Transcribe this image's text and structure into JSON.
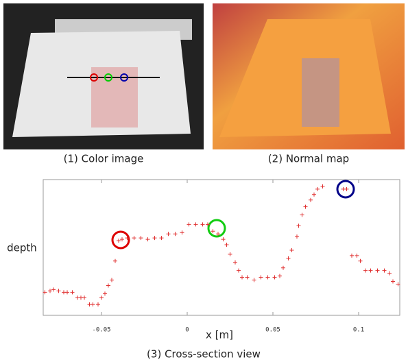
{
  "figures": {
    "color_image": {
      "caption": "(1) Color image"
    },
    "normal_map": {
      "caption": "(2) Normal map"
    }
  },
  "chart_data": {
    "type": "scatter",
    "caption": "(3) Cross-section view",
    "xlabel": "x [m]",
    "ylabel": "depth",
    "color": "#e03030",
    "marker": "+",
    "xlim": [
      -0.084,
      0.124
    ],
    "ylim": [
      0,
      1
    ],
    "xticks": [
      -0.05,
      0,
      0.05,
      0.1
    ],
    "x": [
      -0.083,
      -0.08,
      -0.078,
      -0.075,
      -0.072,
      -0.07,
      -0.067,
      -0.064,
      -0.062,
      -0.06,
      -0.057,
      -0.055,
      -0.052,
      -0.05,
      -0.048,
      -0.046,
      -0.044,
      -0.042,
      -0.04,
      -0.038,
      -0.035,
      -0.031,
      -0.027,
      -0.023,
      -0.019,
      -0.015,
      -0.011,
      -0.007,
      -0.003,
      0.001,
      0.005,
      0.009,
      0.012,
      0.015,
      0.018,
      0.021,
      0.023,
      0.025,
      0.028,
      0.03,
      0.032,
      0.035,
      0.039,
      0.043,
      0.047,
      0.051,
      0.054,
      0.056,
      0.059,
      0.061,
      0.064,
      0.065,
      0.067,
      0.069,
      0.072,
      0.074,
      0.076,
      0.079,
      0.091,
      0.093,
      0.096,
      0.099,
      0.101,
      0.104,
      0.107,
      0.111,
      0.115,
      0.118,
      0.12,
      0.123
    ],
    "y": [
      0.17,
      0.18,
      0.19,
      0.18,
      0.17,
      0.17,
      0.17,
      0.13,
      0.13,
      0.13,
      0.08,
      0.08,
      0.08,
      0.13,
      0.16,
      0.22,
      0.26,
      0.4,
      0.55,
      0.56,
      0.57,
      0.57,
      0.57,
      0.56,
      0.57,
      0.57,
      0.6,
      0.6,
      0.61,
      0.67,
      0.67,
      0.67,
      0.67,
      0.62,
      0.6,
      0.56,
      0.52,
      0.45,
      0.39,
      0.33,
      0.28,
      0.28,
      0.26,
      0.28,
      0.28,
      0.28,
      0.29,
      0.35,
      0.42,
      0.48,
      0.58,
      0.66,
      0.74,
      0.8,
      0.85,
      0.89,
      0.93,
      0.95,
      0.93,
      0.93,
      0.44,
      0.44,
      0.4,
      0.33,
      0.33,
      0.33,
      0.33,
      0.31,
      0.25,
      0.23
    ]
  }
}
